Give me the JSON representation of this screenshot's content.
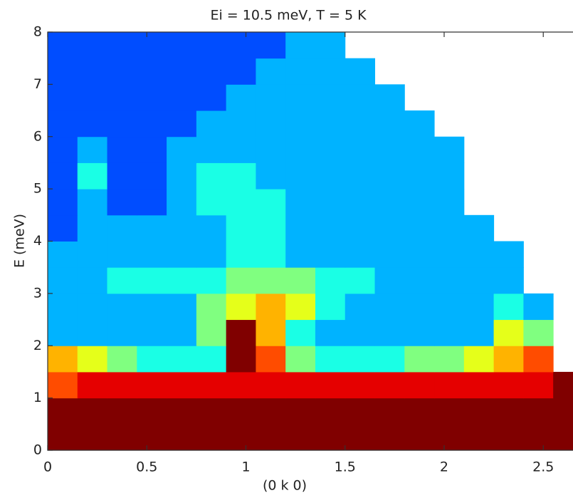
{
  "chart_data": {
    "type": "heatmap",
    "title": "Ei = 10.5 meV, T = 5 K",
    "xlabel": "(0 k 0)",
    "ylabel": "E (meV)",
    "colormap": "jet",
    "zlim": [
      0,
      10
    ],
    "xlim": [
      0,
      2.65
    ],
    "ylim": [
      0,
      8
    ],
    "xticks": [
      0,
      0.5,
      1,
      1.5,
      2,
      2.5
    ],
    "yticks": [
      0,
      1,
      2,
      3,
      4,
      5,
      6,
      7,
      8
    ],
    "x_edges": [
      0,
      0.15,
      0.3,
      0.45,
      0.6,
      0.75,
      0.9,
      1.05,
      1.2,
      1.35,
      1.5,
      1.65,
      1.8,
      1.95,
      2.1,
      2.25,
      2.4,
      2.55,
      2.7
    ],
    "y_edges": [
      0,
      0.5,
      1,
      1.5,
      2,
      2.5,
      3,
      3.5,
      4,
      4.5,
      5,
      5.5,
      6,
      6.5,
      7,
      7.5,
      8
    ],
    "z": [
      [
        10,
        10,
        10,
        10,
        10,
        10,
        10,
        10,
        10,
        10,
        10,
        10,
        10,
        10,
        10,
        10,
        10,
        10
      ],
      [
        10,
        10,
        10,
        10,
        10,
        10,
        10,
        10,
        10,
        10,
        10,
        10,
        10,
        10,
        10,
        10,
        10,
        10
      ],
      [
        8,
        9,
        9,
        9,
        9,
        9,
        9,
        9,
        9,
        9,
        9,
        9,
        9,
        9,
        9,
        9,
        9,
        10
      ],
      [
        7,
        6,
        5,
        4,
        4,
        4,
        10,
        8,
        5,
        4,
        4,
        4,
        5,
        5,
        6,
        7,
        8,
        null
      ],
      [
        3,
        3,
        3,
        3,
        3,
        5,
        10,
        7,
        4,
        3,
        3,
        3,
        3,
        3,
        3,
        6,
        5,
        null
      ],
      [
        3,
        3,
        3,
        3,
        3,
        5,
        6,
        7,
        6,
        4,
        3,
        3,
        3,
        3,
        3,
        4,
        3,
        null
      ],
      [
        3,
        3,
        4,
        4,
        4,
        4,
        5,
        5,
        5,
        4,
        4,
        3,
        3,
        3,
        3,
        3,
        null,
        null
      ],
      [
        3,
        3,
        3,
        3,
        3,
        3,
        4,
        4,
        3,
        3,
        3,
        3,
        3,
        3,
        3,
        3,
        null,
        null
      ],
      [
        2,
        3,
        3,
        3,
        3,
        3,
        4,
        4,
        3,
        3,
        3,
        3,
        3,
        3,
        3,
        null,
        null,
        null
      ],
      [
        2,
        3,
        2,
        2,
        3,
        4,
        4,
        4,
        3,
        3,
        3,
        3,
        3,
        3,
        null,
        null,
        null,
        null
      ],
      [
        2,
        4,
        2,
        2,
        3,
        4,
        4,
        3,
        3,
        3,
        3,
        3,
        3,
        3,
        null,
        null,
        null,
        null
      ],
      [
        2,
        3,
        2,
        2,
        3,
        3,
        3,
        3,
        3,
        3,
        3,
        3,
        3,
        3,
        null,
        null,
        null,
        null
      ],
      [
        2,
        2,
        2,
        2,
        2,
        3,
        3,
        3,
        3,
        3,
        3,
        3,
        3,
        null,
        null,
        null,
        null,
        null
      ],
      [
        2,
        2,
        2,
        2,
        2,
        2,
        3,
        3,
        3,
        3,
        3,
        3,
        null,
        null,
        null,
        null,
        null,
        null
      ],
      [
        2,
        2,
        2,
        2,
        2,
        2,
        2,
        3,
        3,
        3,
        3,
        null,
        null,
        null,
        null,
        null,
        null,
        null
      ],
      [
        2,
        2,
        2,
        2,
        2,
        2,
        2,
        2,
        3,
        3,
        null,
        null,
        null,
        null,
        null,
        null,
        null,
        null
      ]
    ]
  }
}
